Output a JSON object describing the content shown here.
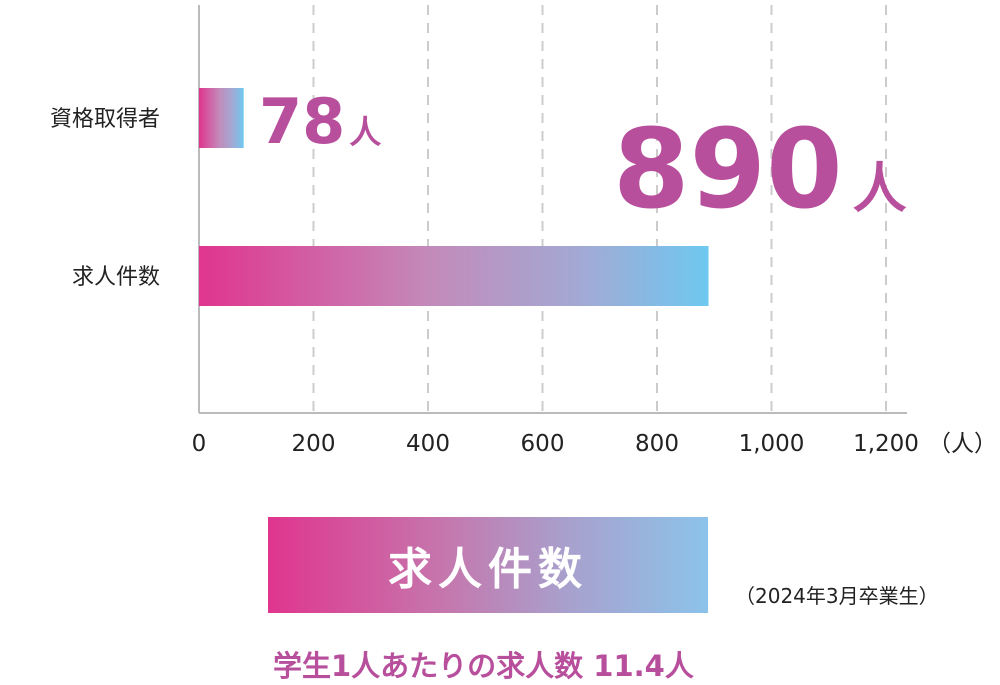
{
  "chart_data": {
    "type": "bar",
    "orientation": "horizontal",
    "categories": [
      "資格取得者",
      "求人件数"
    ],
    "values": [
      78,
      890
    ],
    "xlim": [
      0,
      1200
    ],
    "xticks": [
      "0",
      "200",
      "400",
      "600",
      "800",
      "1,000",
      "1,200"
    ],
    "xunit": "（人）",
    "grid": true,
    "data_labels": [
      {
        "number": "78",
        "unit": "人"
      },
      {
        "number": "890",
        "unit": "人"
      }
    ]
  },
  "legend": {
    "label": "求人件数"
  },
  "note": "（2024年3月卒業生）",
  "ratio_text": "学生1人あたりの求人数 11.4人",
  "colors": {
    "accent": "#b84f9c",
    "gradient_start": "#e0358e",
    "gradient_end": "#6ec8f0",
    "grid": "#cccccc",
    "axis": "#bbbbbb"
  }
}
